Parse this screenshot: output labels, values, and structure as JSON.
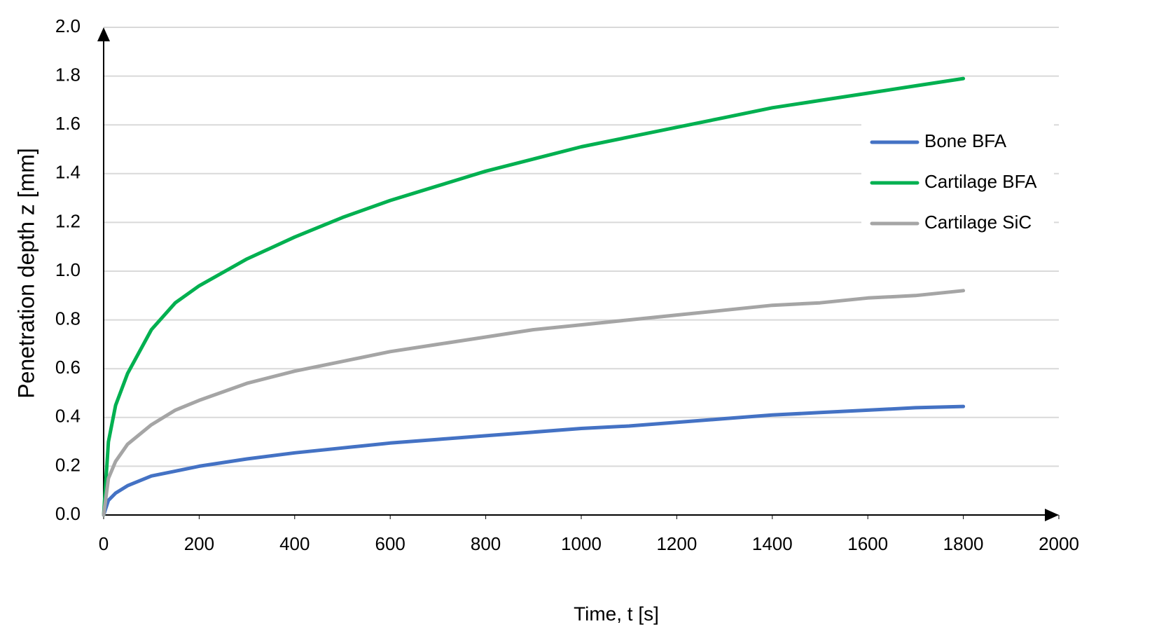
{
  "chart_data": {
    "type": "line",
    "xlabel": "Time, t [s]",
    "ylabel": "Penetration depth z [mm]",
    "x": [
      0,
      10,
      25,
      50,
      100,
      150,
      200,
      300,
      400,
      500,
      600,
      700,
      800,
      900,
      1000,
      1100,
      1200,
      1300,
      1400,
      1500,
      1600,
      1700,
      1800
    ],
    "series": [
      {
        "name": "Bone BFA",
        "color": "#4472c4",
        "values": [
          0,
          0.06,
          0.09,
          0.12,
          0.16,
          0.18,
          0.2,
          0.23,
          0.255,
          0.275,
          0.295,
          0.31,
          0.325,
          0.34,
          0.355,
          0.365,
          0.38,
          0.395,
          0.41,
          0.42,
          0.43,
          0.44,
          0.445
        ]
      },
      {
        "name": "Cartilage BFA",
        "color": "#00b050",
        "values": [
          0,
          0.3,
          0.45,
          0.58,
          0.76,
          0.87,
          0.94,
          1.05,
          1.14,
          1.22,
          1.29,
          1.35,
          1.41,
          1.46,
          1.51,
          1.55,
          1.59,
          1.63,
          1.67,
          1.7,
          1.73,
          1.76,
          1.79
        ]
      },
      {
        "name": "Cartilage SiC",
        "color": "#a5a5a5",
        "values": [
          0,
          0.15,
          0.22,
          0.29,
          0.37,
          0.43,
          0.47,
          0.54,
          0.59,
          0.63,
          0.67,
          0.7,
          0.73,
          0.76,
          0.78,
          0.8,
          0.82,
          0.84,
          0.86,
          0.87,
          0.89,
          0.9,
          0.92
        ]
      }
    ],
    "xlim": [
      0,
      2000
    ],
    "xticks": [
      0,
      200,
      400,
      600,
      800,
      1000,
      1200,
      1400,
      1600,
      1800,
      2000
    ],
    "ylim": [
      0,
      2
    ],
    "yticks": [
      {
        "value": 0,
        "label": "0.0"
      },
      0.2,
      0.4,
      0.6,
      0.8,
      {
        "value": 1,
        "label": "1.0"
      },
      1.2,
      1.4,
      1.6,
      1.8,
      {
        "value": 2,
        "label": "2.0"
      }
    ],
    "grid": true,
    "legend": "right"
  }
}
